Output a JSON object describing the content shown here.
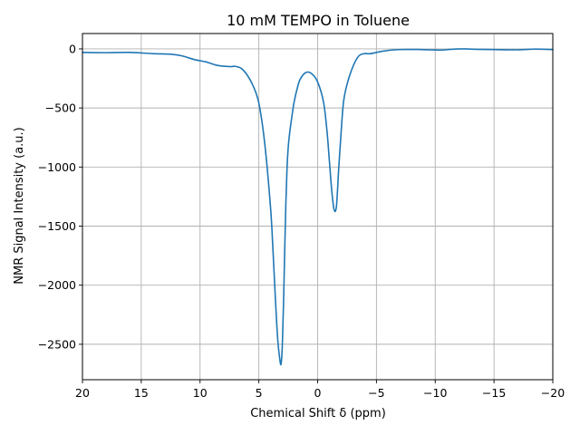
{
  "chart_data": {
    "type": "line",
    "title": "10 mM TEMPO in Toluene",
    "xlabel": "Chemical Shift δ (ppm)",
    "ylabel": "NMR Signal Intensity (a.u.)",
    "xlim": [
      20,
      -20
    ],
    "ylim": [
      -2800,
      130
    ],
    "x_inverted": true,
    "grid": true,
    "xticks": [
      20,
      15,
      10,
      5,
      0,
      -5,
      -10,
      -15,
      -20
    ],
    "xtick_labels": [
      "20",
      "15",
      "10",
      "5",
      "0",
      "−5",
      "−10",
      "−15",
      "−20"
    ],
    "yticks": [
      0,
      -500,
      -1000,
      -1500,
      -2000,
      -2500
    ],
    "ytick_labels": [
      "0",
      "−500",
      "−1000",
      "−1500",
      "−2000",
      "−2500"
    ],
    "series": [
      {
        "color": "#1f77b4",
        "x": [
          20,
          18,
          16,
          14,
          12.5,
          11.5,
          10.5,
          9.5,
          8.5,
          7.5,
          7,
          6.5,
          6,
          5.5,
          5,
          4.5,
          4,
          3.8,
          3.6,
          3.4,
          3.2,
          3.1,
          3.0,
          2.9,
          2.8,
          2.7,
          2.6,
          2.5,
          2.4,
          2.3,
          2.2,
          2.1,
          2.0,
          1.8,
          1.5,
          1.0,
          0.5,
          0.0,
          -0.5,
          -0.8,
          -1.0,
          -1.2,
          -1.4,
          -1.6,
          -1.8,
          -2.0,
          -2.2,
          -2.5,
          -3.0,
          -3.5,
          -4.0,
          -4.5,
          -5.5,
          -6.5,
          -7.5,
          -8.5,
          -9.5,
          -10.5,
          -11.5,
          -12.5,
          -13.5,
          -15,
          -17,
          -18.5,
          -20
        ],
        "y": [
          -30,
          -32,
          -30,
          -40,
          -45,
          -60,
          -90,
          -110,
          -140,
          -150,
          -148,
          -165,
          -220,
          -310,
          -460,
          -800,
          -1350,
          -1700,
          -2100,
          -2450,
          -2640,
          -2660,
          -2500,
          -2150,
          -1700,
          -1300,
          -1000,
          -830,
          -730,
          -650,
          -580,
          -510,
          -450,
          -360,
          -260,
          -200,
          -210,
          -280,
          -450,
          -700,
          -950,
          -1200,
          -1360,
          -1330,
          -1000,
          -700,
          -450,
          -300,
          -150,
          -60,
          -40,
          -40,
          -20,
          -8,
          -5,
          -5,
          -8,
          -10,
          -3,
          0,
          -4,
          -6,
          -8,
          -2,
          -6
        ]
      }
    ]
  }
}
